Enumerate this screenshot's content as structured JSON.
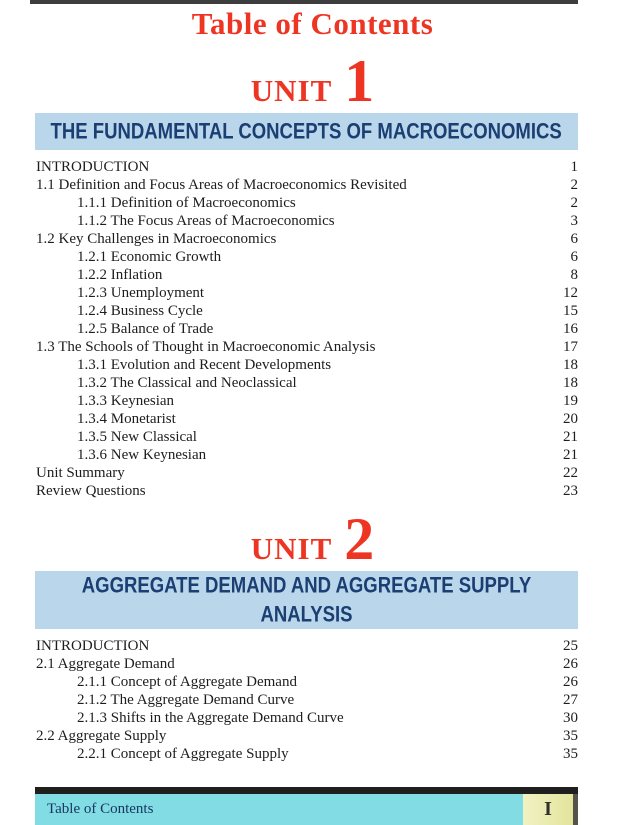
{
  "page": {
    "title": "Table of Contents",
    "footer": {
      "label": "Table of Contents",
      "page_number": "I"
    }
  },
  "colors": {
    "accent_red": "#ee3524",
    "banner_bg": "#b9d6ea",
    "banner_text": "#1b3e73",
    "body_text": "#1d1d1d",
    "footer_cyan": "#82dce4",
    "footer_yellow": "#e3e49c",
    "footer_label": "#17365f",
    "bar_dark": "#3d3d3d"
  },
  "units": [
    {
      "unit_label": "UNIT",
      "unit_number": "1",
      "banner": "THE FUNDAMENTAL CONCEPTS OF MACROECONOMICS",
      "entries": [
        {
          "title": "INTRODUCTION",
          "page": "1",
          "level": 0
        },
        {
          "title": "1.1 Definition and Focus Areas of Macroeconomics Revisited",
          "page": "2",
          "level": 0
        },
        {
          "title": "1.1.1 Definition of Macroeconomics",
          "page": "2",
          "level": 1
        },
        {
          "title": "1.1.2 The Focus Areas of Macroeconomics",
          "page": "3",
          "level": 1
        },
        {
          "title": "1.2 Key Challenges in Macroeconomics",
          "page": "6",
          "level": 0
        },
        {
          "title": "1.2.1 Economic Growth",
          "page": "6",
          "level": 1
        },
        {
          "title": "1.2.2 Inflation",
          "page": "8",
          "level": 1
        },
        {
          "title": "1.2.3 Unemployment",
          "page": "12",
          "level": 1
        },
        {
          "title": "1.2.4 Business Cycle",
          "page": "15",
          "level": 1
        },
        {
          "title": "1.2.5 Balance of Trade",
          "page": "16",
          "level": 1
        },
        {
          "title": "1.3 The Schools of Thought in Macroeconomic Analysis",
          "page": "17",
          "level": 0
        },
        {
          "title": "1.3.1 Evolution and Recent Developments",
          "page": "18",
          "level": 1
        },
        {
          "title": "1.3.2 The Classical and Neoclassical",
          "page": "18",
          "level": 1
        },
        {
          "title": "1.3.3 Keynesian",
          "page": "19",
          "level": 1
        },
        {
          "title": "1.3.4 Monetarist",
          "page": "20",
          "level": 1
        },
        {
          "title": "1.3.5 New Classical",
          "page": "21",
          "level": 1
        },
        {
          "title": "1.3.6 New Keynesian",
          "page": "21",
          "level": 1
        },
        {
          "title": "Unit Summary",
          "page": "22",
          "level": 0
        },
        {
          "title": "Review Questions",
          "page": "23",
          "level": 0
        }
      ]
    },
    {
      "unit_label": "UNIT",
      "unit_number": "2",
      "banner": "AGGREGATE DEMAND AND AGGREGATE SUPPLY ANALYSIS",
      "entries": [
        {
          "title": "INTRODUCTION",
          "page": "25",
          "level": 0
        },
        {
          "title": "2.1 Aggregate Demand",
          "page": "26",
          "level": 0
        },
        {
          "title": "2.1.1 Concept of Aggregate Demand",
          "page": "26",
          "level": 1
        },
        {
          "title": "2.1.2 The Aggregate Demand Curve",
          "page": "27",
          "level": 1
        },
        {
          "title": "2.1.3 Shifts in the Aggregate Demand Curve",
          "page": "30",
          "level": 1
        },
        {
          "title": "2.2 Aggregate Supply",
          "page": "35",
          "level": 0
        },
        {
          "title": "2.2.1 Concept of Aggregate Supply",
          "page": "35",
          "level": 1
        }
      ]
    }
  ]
}
